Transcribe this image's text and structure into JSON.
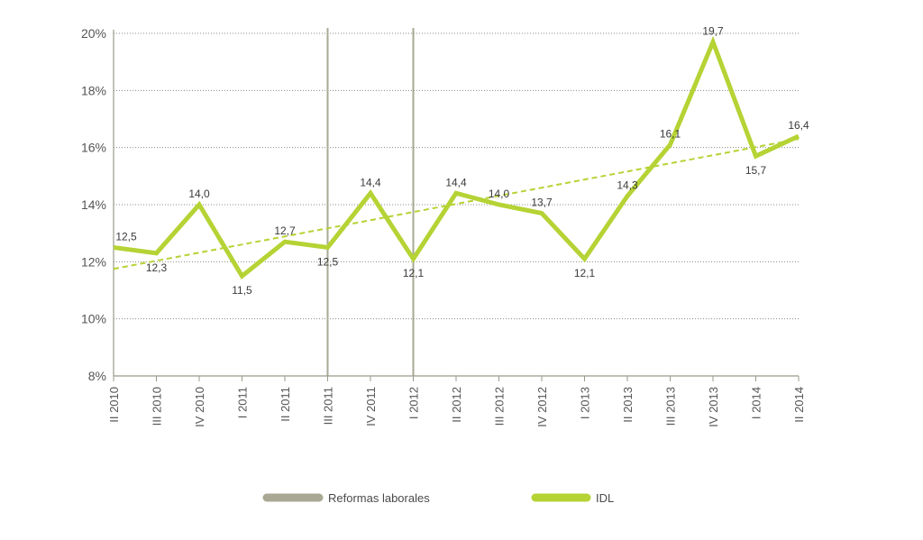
{
  "chart_data": {
    "type": "line",
    "categories": [
      "II 2010",
      "III 2010",
      "IV 2010",
      "I 2011",
      "II 2011",
      "III 2011",
      "IV 2011",
      "I 2012",
      "II 2012",
      "III 2012",
      "IV 2012",
      "I 2013",
      "II 2013",
      "III 2013",
      "IV 2013",
      "I 2014",
      "II 2014"
    ],
    "series": [
      {
        "name": "IDL",
        "values": [
          12.5,
          12.3,
          14.0,
          11.5,
          12.7,
          12.5,
          14.4,
          12.1,
          14.4,
          14.0,
          13.7,
          12.1,
          14.3,
          16.1,
          19.7,
          15.7,
          16.4
        ],
        "labels": [
          "12,5",
          "12,3",
          "14,0",
          "11,5",
          "12,7",
          "12,5",
          "14,4",
          "12,1",
          "14,4",
          "14,0",
          "13,7",
          "12,1",
          "14,3",
          "16,1",
          "19,7",
          "15,7",
          "16,4"
        ],
        "color": "#b5d334"
      }
    ],
    "trendline": {
      "from": 11.75,
      "to": 16.3,
      "color": "#b5d334",
      "style": "dashed"
    },
    "reference_lines": {
      "name": "Reformas laborales",
      "at_categories": [
        "III 2011",
        "I 2012"
      ],
      "color": "#a8a894"
    },
    "ylim": [
      8,
      20
    ],
    "yticks": [
      8,
      10,
      12,
      14,
      16,
      18,
      20
    ],
    "ytick_labels": [
      "8%",
      "10%",
      "12%",
      "14%",
      "16%",
      "18%",
      "20%"
    ],
    "grid": true,
    "legend": {
      "position": "bottom",
      "items": [
        {
          "label": "Reformas laborales",
          "color": "#a8a894"
        },
        {
          "label": "IDL",
          "color": "#b5d334"
        }
      ]
    },
    "title": "",
    "xlabel": "",
    "ylabel": ""
  }
}
